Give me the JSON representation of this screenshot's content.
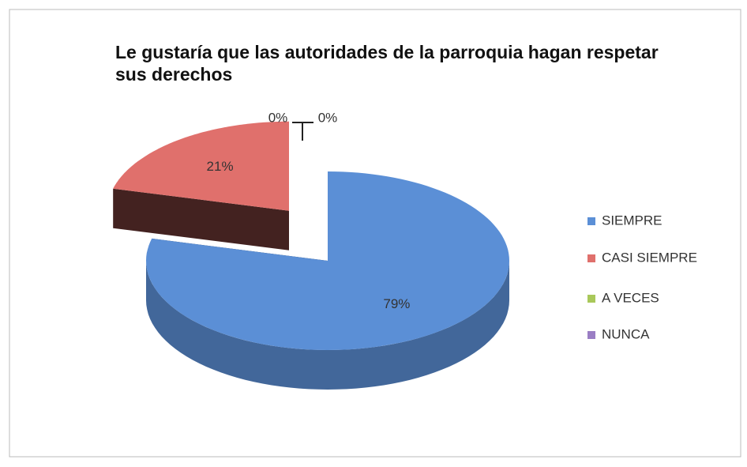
{
  "chart_data": {
    "type": "pie",
    "title": "Le gustaría que las autoridades de la parroquia hagan respetar sus derechos",
    "categories": [
      "SIEMPRE",
      "CASI SIEMPRE",
      "A VECES",
      "NUNCA"
    ],
    "values": [
      79,
      21,
      0,
      0
    ],
    "value_labels": [
      "79%",
      "21%",
      "0%",
      "0%"
    ],
    "colors": [
      "#5b8fd6",
      "#e0706c",
      "#a9c85a",
      "#9a7ec4"
    ],
    "legend": "right"
  }
}
